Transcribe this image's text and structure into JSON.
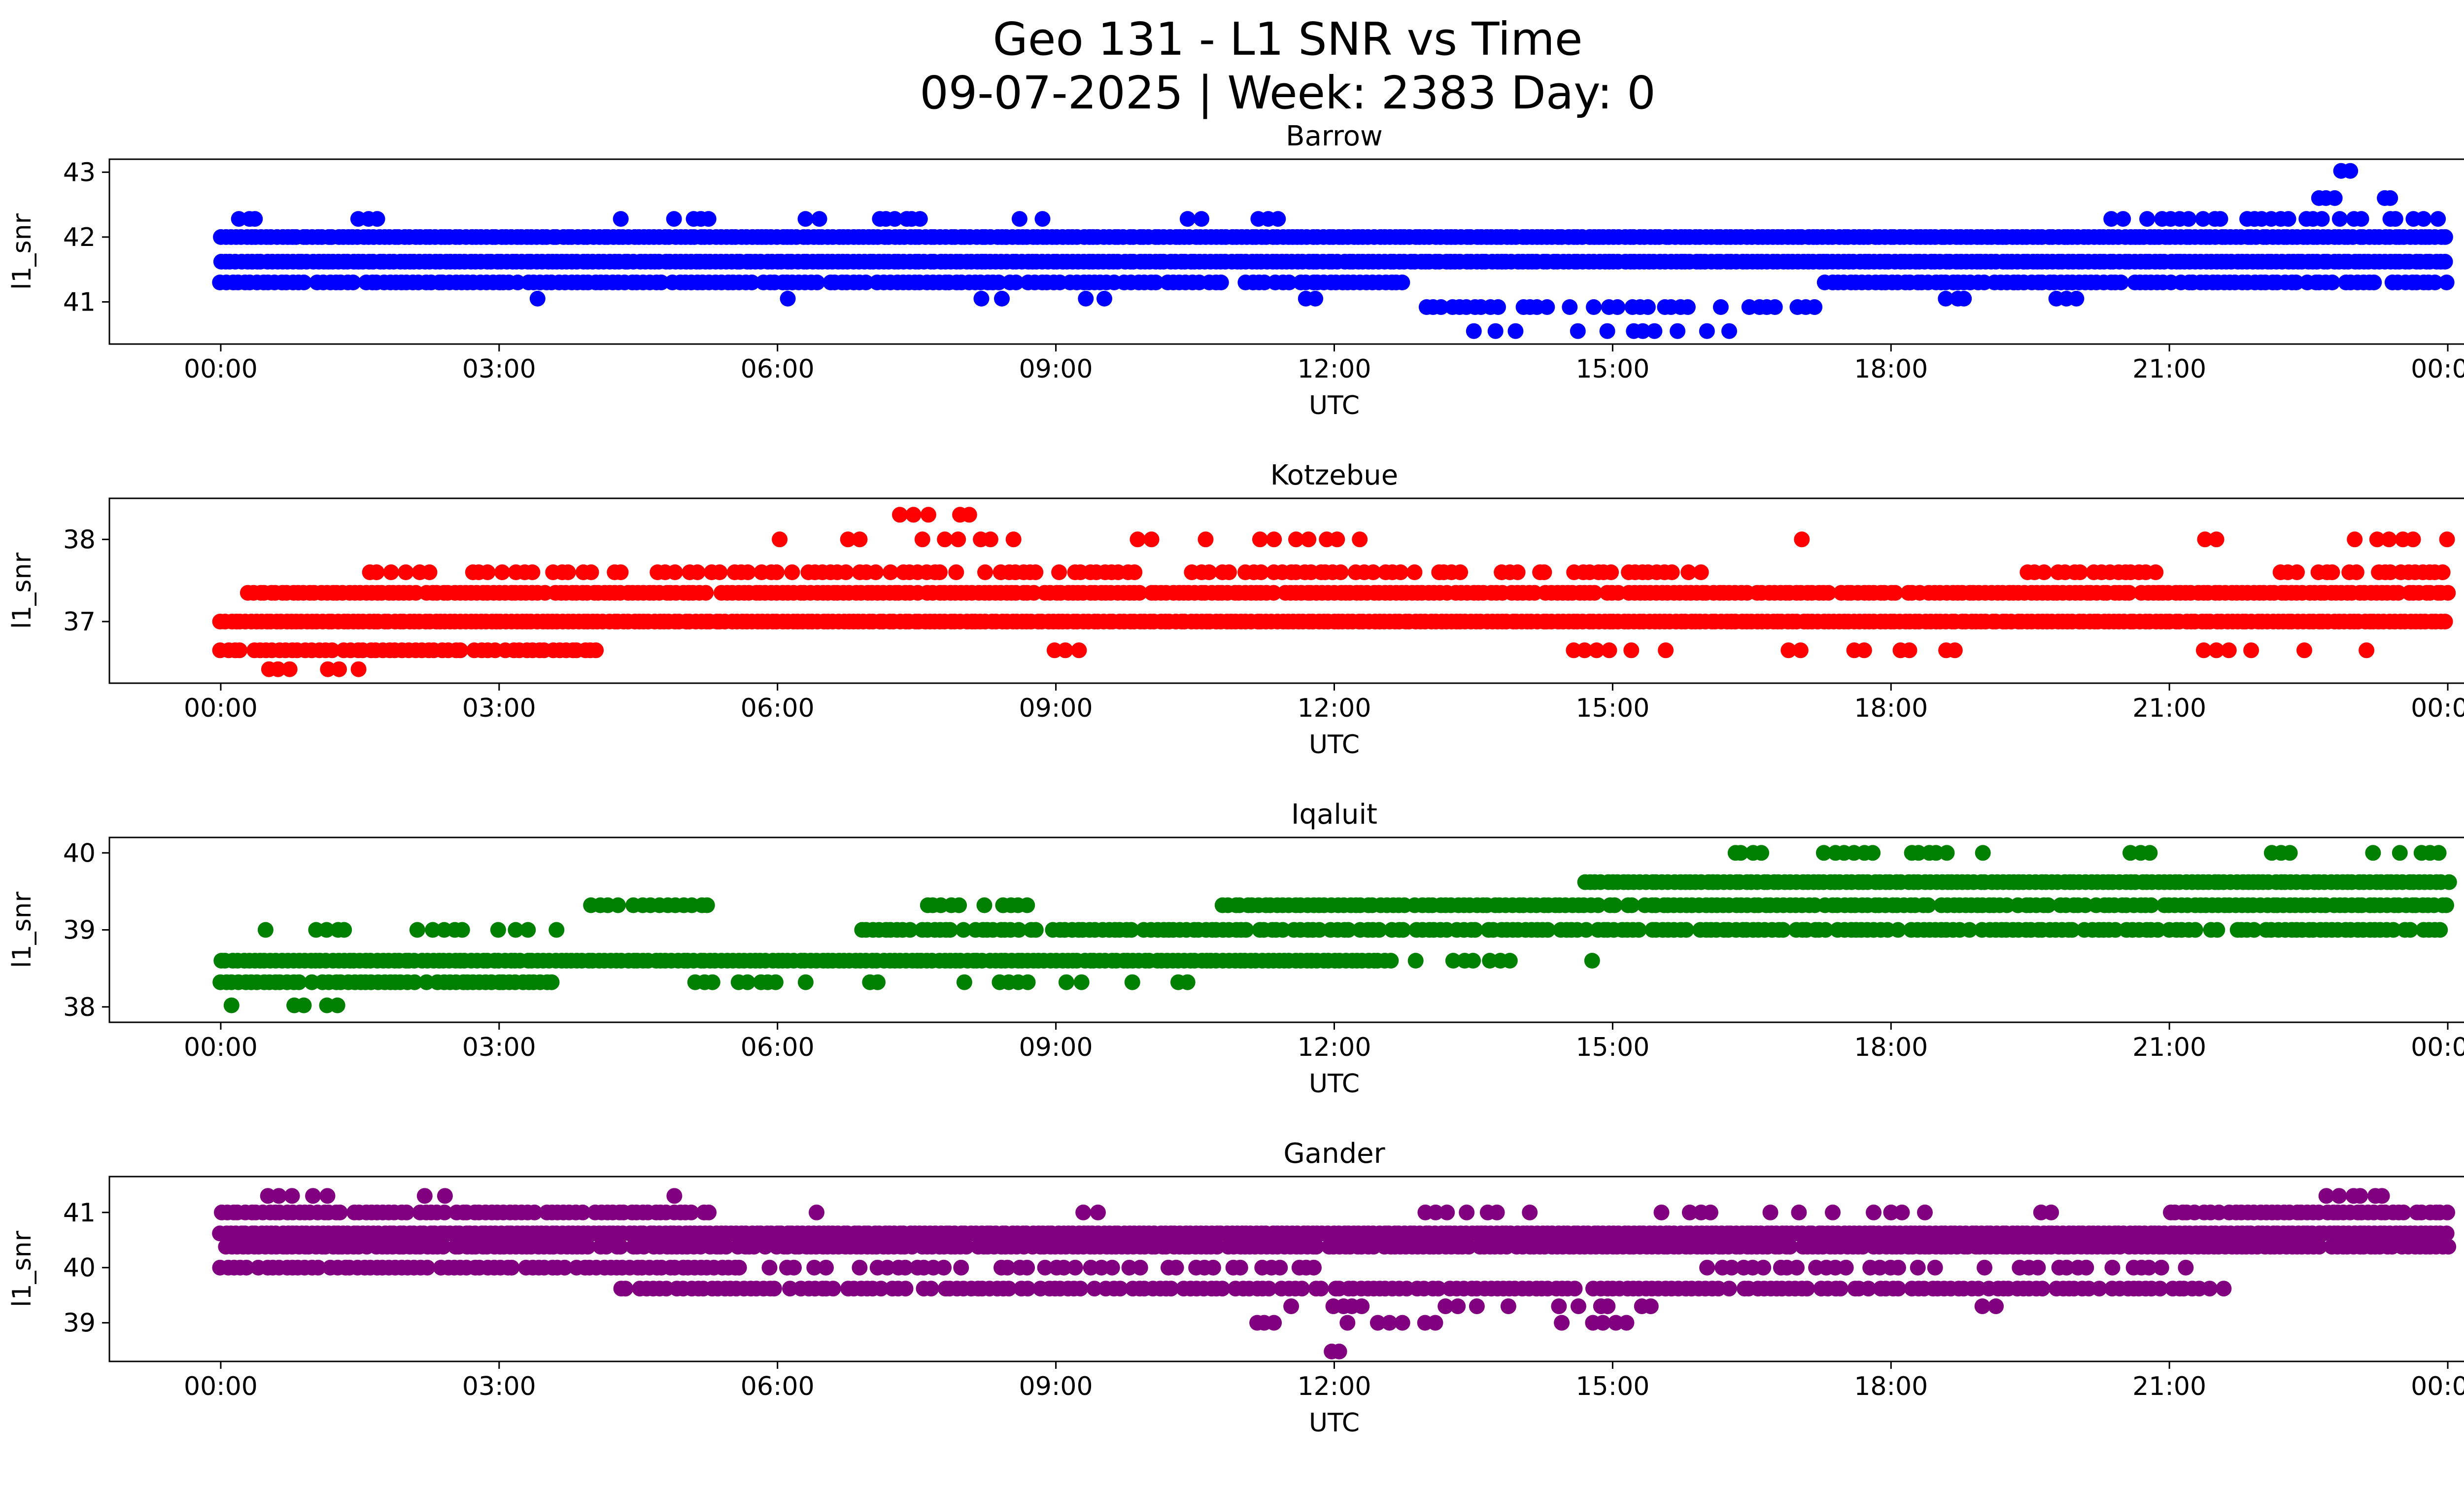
{
  "header": {
    "title": "Geo 131 - L1 SNR vs Time",
    "subtitle": "09-07-2025 | Week: 2383 Day: 0"
  },
  "chart_data": [
    {
      "type": "scatter",
      "title": "Barrow",
      "color": "#0000ff",
      "xlabel": "UTC",
      "ylabel": "l1_snr",
      "xlim": [
        -1.2,
        25.2
      ],
      "ylim": [
        40.35,
        43.2
      ],
      "xticks": [
        "00:00",
        "03:00",
        "06:00",
        "09:00",
        "12:00",
        "15:00",
        "18:00",
        "21:00",
        "00:00"
      ],
      "xtick_hours": [
        0,
        3,
        6,
        9,
        12,
        15,
        18,
        21,
        24
      ],
      "yticks": [
        41,
        42,
        43
      ],
      "seed": 11,
      "bands": [
        {
          "y": 42.0,
          "segments": [
            [
              0,
              24
            ]
          ],
          "step": 0.055,
          "density": 1
        },
        {
          "y": 41.62,
          "segments": [
            [
              0,
              24
            ]
          ],
          "step": 0.055,
          "density": 1
        },
        {
          "y": 41.3,
          "segments": [
            [
              0,
              12.8
            ],
            [
              17.3,
              24
            ]
          ],
          "step": 0.065,
          "density": 0.92
        },
        {
          "y": 41.05,
          "segments": [
            [
              3.4,
              3.65
            ],
            [
              5.9,
              6.15
            ],
            [
              8.2,
              8.45
            ],
            [
              9.3,
              9.5
            ],
            [
              11.6,
              11.85
            ],
            [
              18.6,
              18.85
            ],
            [
              19.8,
              20.05
            ]
          ],
          "step": 0.1,
          "density": 0.7
        },
        {
          "y": 40.92,
          "segments": [
            [
              13.0,
              17.2
            ]
          ],
          "step": 0.085,
          "density": 0.6
        },
        {
          "y": 40.55,
          "segments": [
            [
              13.5,
              14.2
            ],
            [
              14.6,
              16.6
            ]
          ],
          "step": 0.12,
          "density": 0.55
        },
        {
          "y": 42.28,
          "segments": [
            [
              0.2,
              0.55
            ],
            [
              1.5,
              1.75
            ],
            [
              4.2,
              4.45
            ],
            [
              4.9,
              5.3
            ],
            [
              6.1,
              6.5
            ],
            [
              7.1,
              7.6
            ],
            [
              8.6,
              9.0
            ],
            [
              10.4,
              10.65
            ],
            [
              11.2,
              11.45
            ],
            [
              20.3,
              23.9
            ]
          ],
          "step": 0.09,
          "density": 0.7
        },
        {
          "y": 42.6,
          "segments": [
            [
              22.6,
              22.85
            ],
            [
              23.3,
              23.45
            ]
          ],
          "step": 0.1,
          "density": 0.8
        },
        {
          "y": 43.02,
          "segments": [
            [
              22.85,
              22.95
            ]
          ],
          "step": 0.1,
          "density": 1
        }
      ]
    },
    {
      "type": "scatter",
      "title": "Kotzebue",
      "color": "#ff0000",
      "xlabel": "UTC",
      "ylabel": "l1_snr",
      "xlim": [
        -1.2,
        25.2
      ],
      "ylim": [
        36.25,
        38.5
      ],
      "xticks": [
        "00:00",
        "03:00",
        "06:00",
        "09:00",
        "12:00",
        "15:00",
        "18:00",
        "21:00",
        "00:00"
      ],
      "xtick_hours": [
        0,
        3,
        6,
        9,
        12,
        15,
        18,
        21,
        24
      ],
      "yticks": [
        37,
        38
      ],
      "seed": 22,
      "bands": [
        {
          "y": 37.0,
          "segments": [
            [
              0,
              24
            ]
          ],
          "step": 0.055,
          "density": 1
        },
        {
          "y": 37.35,
          "segments": [
            [
              0.3,
              24
            ]
          ],
          "step": 0.06,
          "density": 0.95
        },
        {
          "y": 37.6,
          "segments": [
            [
              1.6,
              2.3
            ],
            [
              2.7,
              3.4
            ],
            [
              3.6,
              9.9
            ],
            [
              10.4,
              13.4
            ],
            [
              13.8,
              16.1
            ],
            [
              19.4,
              20.9
            ],
            [
              22.2,
              24
            ]
          ],
          "step": 0.08,
          "density": 0.75
        },
        {
          "y": 36.65,
          "segments": [
            [
              0,
              4.1
            ]
          ],
          "step": 0.07,
          "density": 0.9
        },
        {
          "y": 36.65,
          "segments": [
            [
              9.0,
              9.35
            ],
            [
              14.6,
              15.6
            ],
            [
              16.9,
              19.4
            ],
            [
              21.4,
              22.6
            ],
            [
              22.9,
              23.3
            ]
          ],
          "step": 0.12,
          "density": 0.45
        },
        {
          "y": 36.42,
          "segments": [
            [
              0.4,
              1.6
            ]
          ],
          "step": 0.11,
          "density": 0.6
        },
        {
          "y": 38.0,
          "segments": [
            [
              4.4,
              4.6
            ],
            [
              5.8,
              6.2
            ],
            [
              6.5,
              8.7
            ],
            [
              9.9,
              12.3
            ],
            [
              16.9,
              17.3
            ],
            [
              20.9,
              21.6
            ],
            [
              22.9,
              24
            ]
          ],
          "step": 0.12,
          "density": 0.5
        },
        {
          "y": 38.3,
          "segments": [
            [
              7.2,
              8.35
            ]
          ],
          "step": 0.15,
          "density": 0.55
        }
      ]
    },
    {
      "type": "scatter",
      "title": "Iqaluit",
      "color": "#008000",
      "xlabel": "UTC",
      "ylabel": "l1_snr",
      "xlim": [
        -1.2,
        25.2
      ],
      "ylim": [
        37.8,
        40.2
      ],
      "xticks": [
        "00:00",
        "03:00",
        "06:00",
        "09:00",
        "12:00",
        "15:00",
        "18:00",
        "21:00",
        "00:00"
      ],
      "xtick_hours": [
        0,
        3,
        6,
        9,
        12,
        15,
        18,
        21,
        24
      ],
      "yticks": [
        38,
        39,
        40
      ],
      "seed": 33,
      "bands": [
        {
          "y": 38.6,
          "segments": [
            [
              0,
              12.6
            ]
          ],
          "step": 0.06,
          "density": 1
        },
        {
          "y": 38.6,
          "segments": [
            [
              12.9,
              14.9
            ]
          ],
          "step": 0.1,
          "density": 0.55
        },
        {
          "y": 38.32,
          "segments": [
            [
              0,
              3.6
            ]
          ],
          "step": 0.065,
          "density": 0.95
        },
        {
          "y": 38.32,
          "segments": [
            [
              4.9,
              6.3
            ],
            [
              6.8,
              7.1
            ],
            [
              8.0,
              10.6
            ]
          ],
          "step": 0.1,
          "density": 0.5
        },
        {
          "y": 38.02,
          "segments": [
            [
              0,
              0.35
            ],
            [
              0.8,
              1.3
            ]
          ],
          "step": 0.12,
          "density": 0.6
        },
        {
          "y": 39.0,
          "segments": [
            [
              0.4,
              0.7
            ],
            [
              0.95,
              1.5
            ],
            [
              2.0,
              2.6
            ],
            [
              2.9,
              3.6
            ]
          ],
          "step": 0.1,
          "density": 0.6
        },
        {
          "y": 39.0,
          "segments": [
            [
              6.9,
              24
            ]
          ],
          "step": 0.065,
          "density": 0.9
        },
        {
          "y": 39.32,
          "segments": [
            [
              4.0,
              5.3
            ],
            [
              7.6,
              8.7
            ]
          ],
          "step": 0.09,
          "density": 0.7
        },
        {
          "y": 39.32,
          "segments": [
            [
              10.8,
              24
            ]
          ],
          "step": 0.065,
          "density": 0.95
        },
        {
          "y": 39.62,
          "segments": [
            [
              14.7,
              24
            ]
          ],
          "step": 0.06,
          "density": 1
        },
        {
          "y": 40.0,
          "segments": [
            [
              16.3,
              16.6
            ],
            [
              17.3,
              17.8
            ],
            [
              18.2,
              19.0
            ],
            [
              20.6,
              20.9
            ],
            [
              22.1,
              22.4
            ],
            [
              23.2,
              23.9
            ]
          ],
          "step": 0.1,
          "density": 0.65
        }
      ]
    },
    {
      "type": "scatter",
      "title": "Gander",
      "color": "#800080",
      "xlabel": "UTC",
      "ylabel": "l1_snr",
      "xlim": [
        -1.2,
        25.2
      ],
      "ylim": [
        38.3,
        41.65
      ],
      "xticks": [
        "00:00",
        "03:00",
        "06:00",
        "09:00",
        "12:00",
        "15:00",
        "18:00",
        "21:00",
        "00:00"
      ],
      "xtick_hours": [
        0,
        3,
        6,
        9,
        12,
        15,
        18,
        21,
        24
      ],
      "yticks": [
        39,
        40,
        41
      ],
      "seed": 44,
      "bands": [
        {
          "y": 40.62,
          "segments": [
            [
              0,
              24
            ]
          ],
          "step": 0.055,
          "density": 1
        },
        {
          "y": 40.38,
          "segments": [
            [
              0,
              24
            ]
          ],
          "step": 0.06,
          "density": 0.95
        },
        {
          "y": 41.0,
          "segments": [
            [
              0,
              5.3
            ],
            [
              21.0,
              24
            ]
          ],
          "step": 0.065,
          "density": 0.95
        },
        {
          "y": 41.0,
          "segments": [
            [
              6.4,
              6.7
            ],
            [
              9.1,
              9.45
            ],
            [
              13.0,
              14.3
            ],
            [
              15.5,
              16.1
            ],
            [
              16.7,
              18.6
            ],
            [
              19.6,
              19.9
            ]
          ],
          "step": 0.11,
          "density": 0.5
        },
        {
          "y": 40.0,
          "segments": [
            [
              0,
              5.6
            ]
          ],
          "step": 0.07,
          "density": 0.9
        },
        {
          "y": 40.0,
          "segments": [
            [
              5.9,
              12.0
            ],
            [
              16.0,
              21.2
            ]
          ],
          "step": 0.1,
          "density": 0.55
        },
        {
          "y": 39.62,
          "segments": [
            [
              4.3,
              21.6
            ]
          ],
          "step": 0.07,
          "density": 0.85
        },
        {
          "y": 39.3,
          "segments": [
            [
              9.6,
              10.1
            ],
            [
              11.1,
              12.6
            ],
            [
              13.2,
              15.6
            ],
            [
              18.9,
              19.3
            ]
          ],
          "step": 0.11,
          "density": 0.5
        },
        {
          "y": 39.0,
          "segments": [
            [
              10.9,
              11.4
            ],
            [
              12.0,
              13.1
            ],
            [
              14.2,
              15.2
            ]
          ],
          "step": 0.12,
          "density": 0.5
        },
        {
          "y": 38.48,
          "segments": [
            [
              11.95,
              12.05
            ]
          ],
          "step": 0.1,
          "density": 1
        },
        {
          "y": 41.3,
          "segments": [
            [
              0.5,
              0.8
            ],
            [
              1.0,
              1.35
            ],
            [
              2.2,
              2.5
            ],
            [
              2.9,
              3.2
            ],
            [
              4.9,
              5.15
            ],
            [
              22.6,
              23.4
            ]
          ],
          "step": 0.12,
          "density": 0.6
        }
      ]
    }
  ]
}
